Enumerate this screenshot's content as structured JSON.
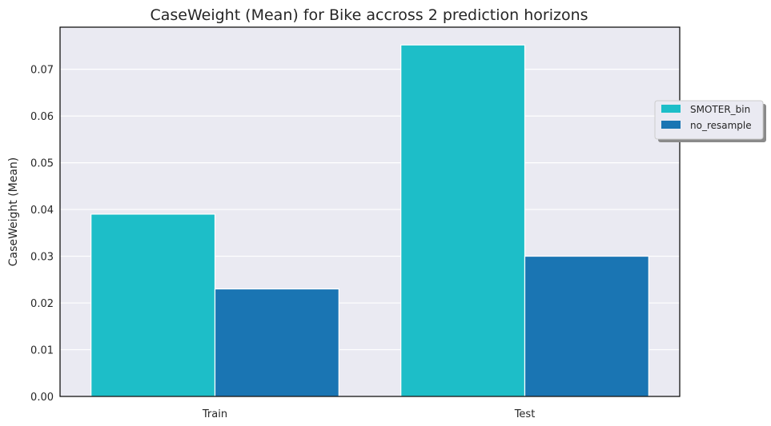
{
  "chart_data": {
    "type": "bar",
    "title": "CaseWeight (Mean) for Bike accross 2 prediction horizons",
    "xlabel": "",
    "ylabel": "CaseWeight (Mean)",
    "categories": [
      "Train",
      "Test"
    ],
    "series": [
      {
        "name": "SMOTER_bin",
        "values": [
          0.039,
          0.0752
        ],
        "color": "#1dbec8"
      },
      {
        "name": "no_resample",
        "values": [
          0.023,
          0.03
        ],
        "color": "#1a75b3"
      }
    ],
    "ylim": [
      0,
      0.079
    ],
    "yticks": [
      "0.00",
      "0.01",
      "0.02",
      "0.03",
      "0.04",
      "0.05",
      "0.06",
      "0.07"
    ],
    "grid": true,
    "legend_position": "right",
    "background_color": "#eaeaf2"
  }
}
